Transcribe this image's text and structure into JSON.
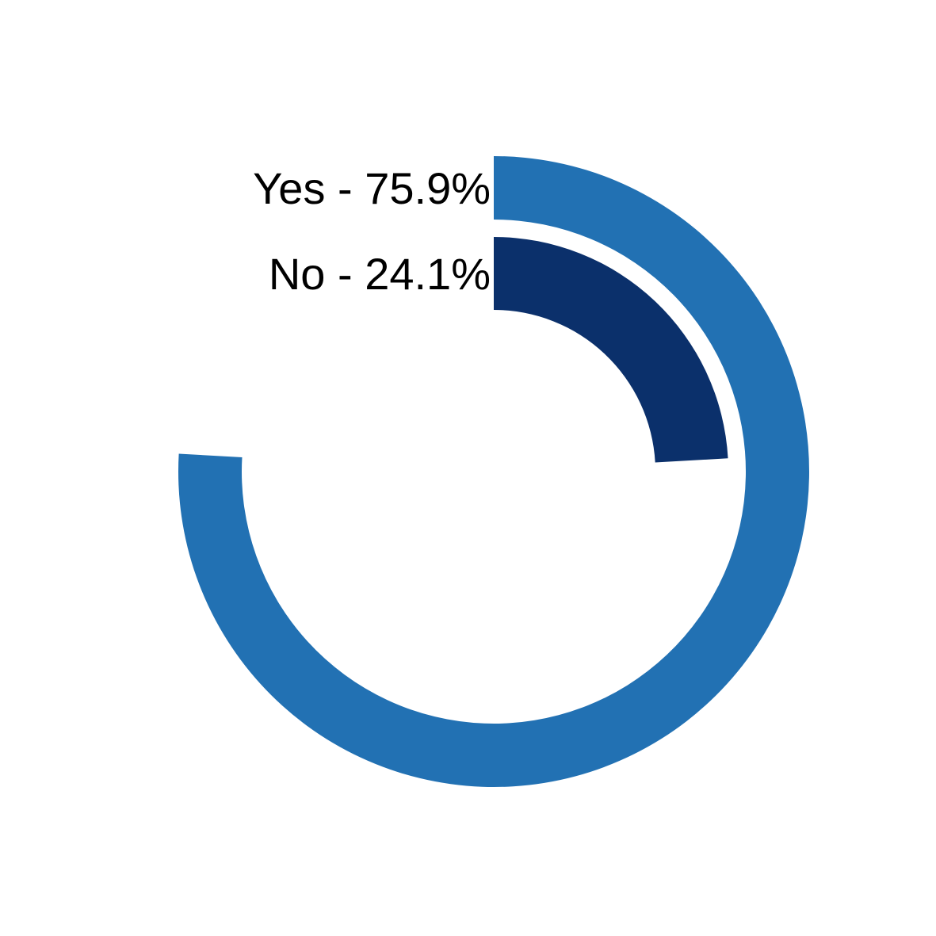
{
  "chart_data": {
    "type": "radial-bar",
    "title": "",
    "max_value": 100,
    "series": [
      {
        "name": "Yes",
        "label": "Yes - 75.9%",
        "value": 75.9,
        "color": "#2271b3"
      },
      {
        "name": "No",
        "label": "No - 24.1%",
        "value": 24.1,
        "color": "#0b306b"
      }
    ],
    "legend": "none",
    "grid": false
  }
}
